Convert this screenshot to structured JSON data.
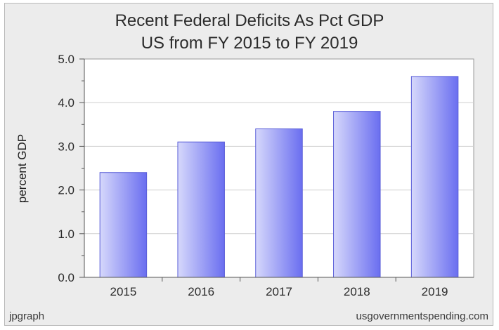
{
  "chart_data": {
    "type": "bar",
    "title": "Recent Federal Deficits As Pct GDP",
    "subtitle": "US from FY 2015 to FY 2019",
    "xlabel": "",
    "ylabel": "percent GDP",
    "categories": [
      "2015",
      "2016",
      "2017",
      "2018",
      "2019"
    ],
    "values": [
      2.4,
      3.1,
      3.4,
      3.8,
      4.6
    ],
    "ylim": [
      0,
      5
    ],
    "yticks": [
      "0.0",
      "1.0",
      "2.0",
      "3.0",
      "4.0",
      "5.0"
    ],
    "grid": true,
    "legend": "none"
  },
  "footer": {
    "left": "jpgraph",
    "right": "usgovernmentspending.com"
  },
  "colors": {
    "background": "#ececec",
    "plot_area": "#ffffff",
    "bar_light": "#d6d8fb",
    "bar_dark": "#6a6ef0",
    "gridline": "#cfcfcf"
  }
}
